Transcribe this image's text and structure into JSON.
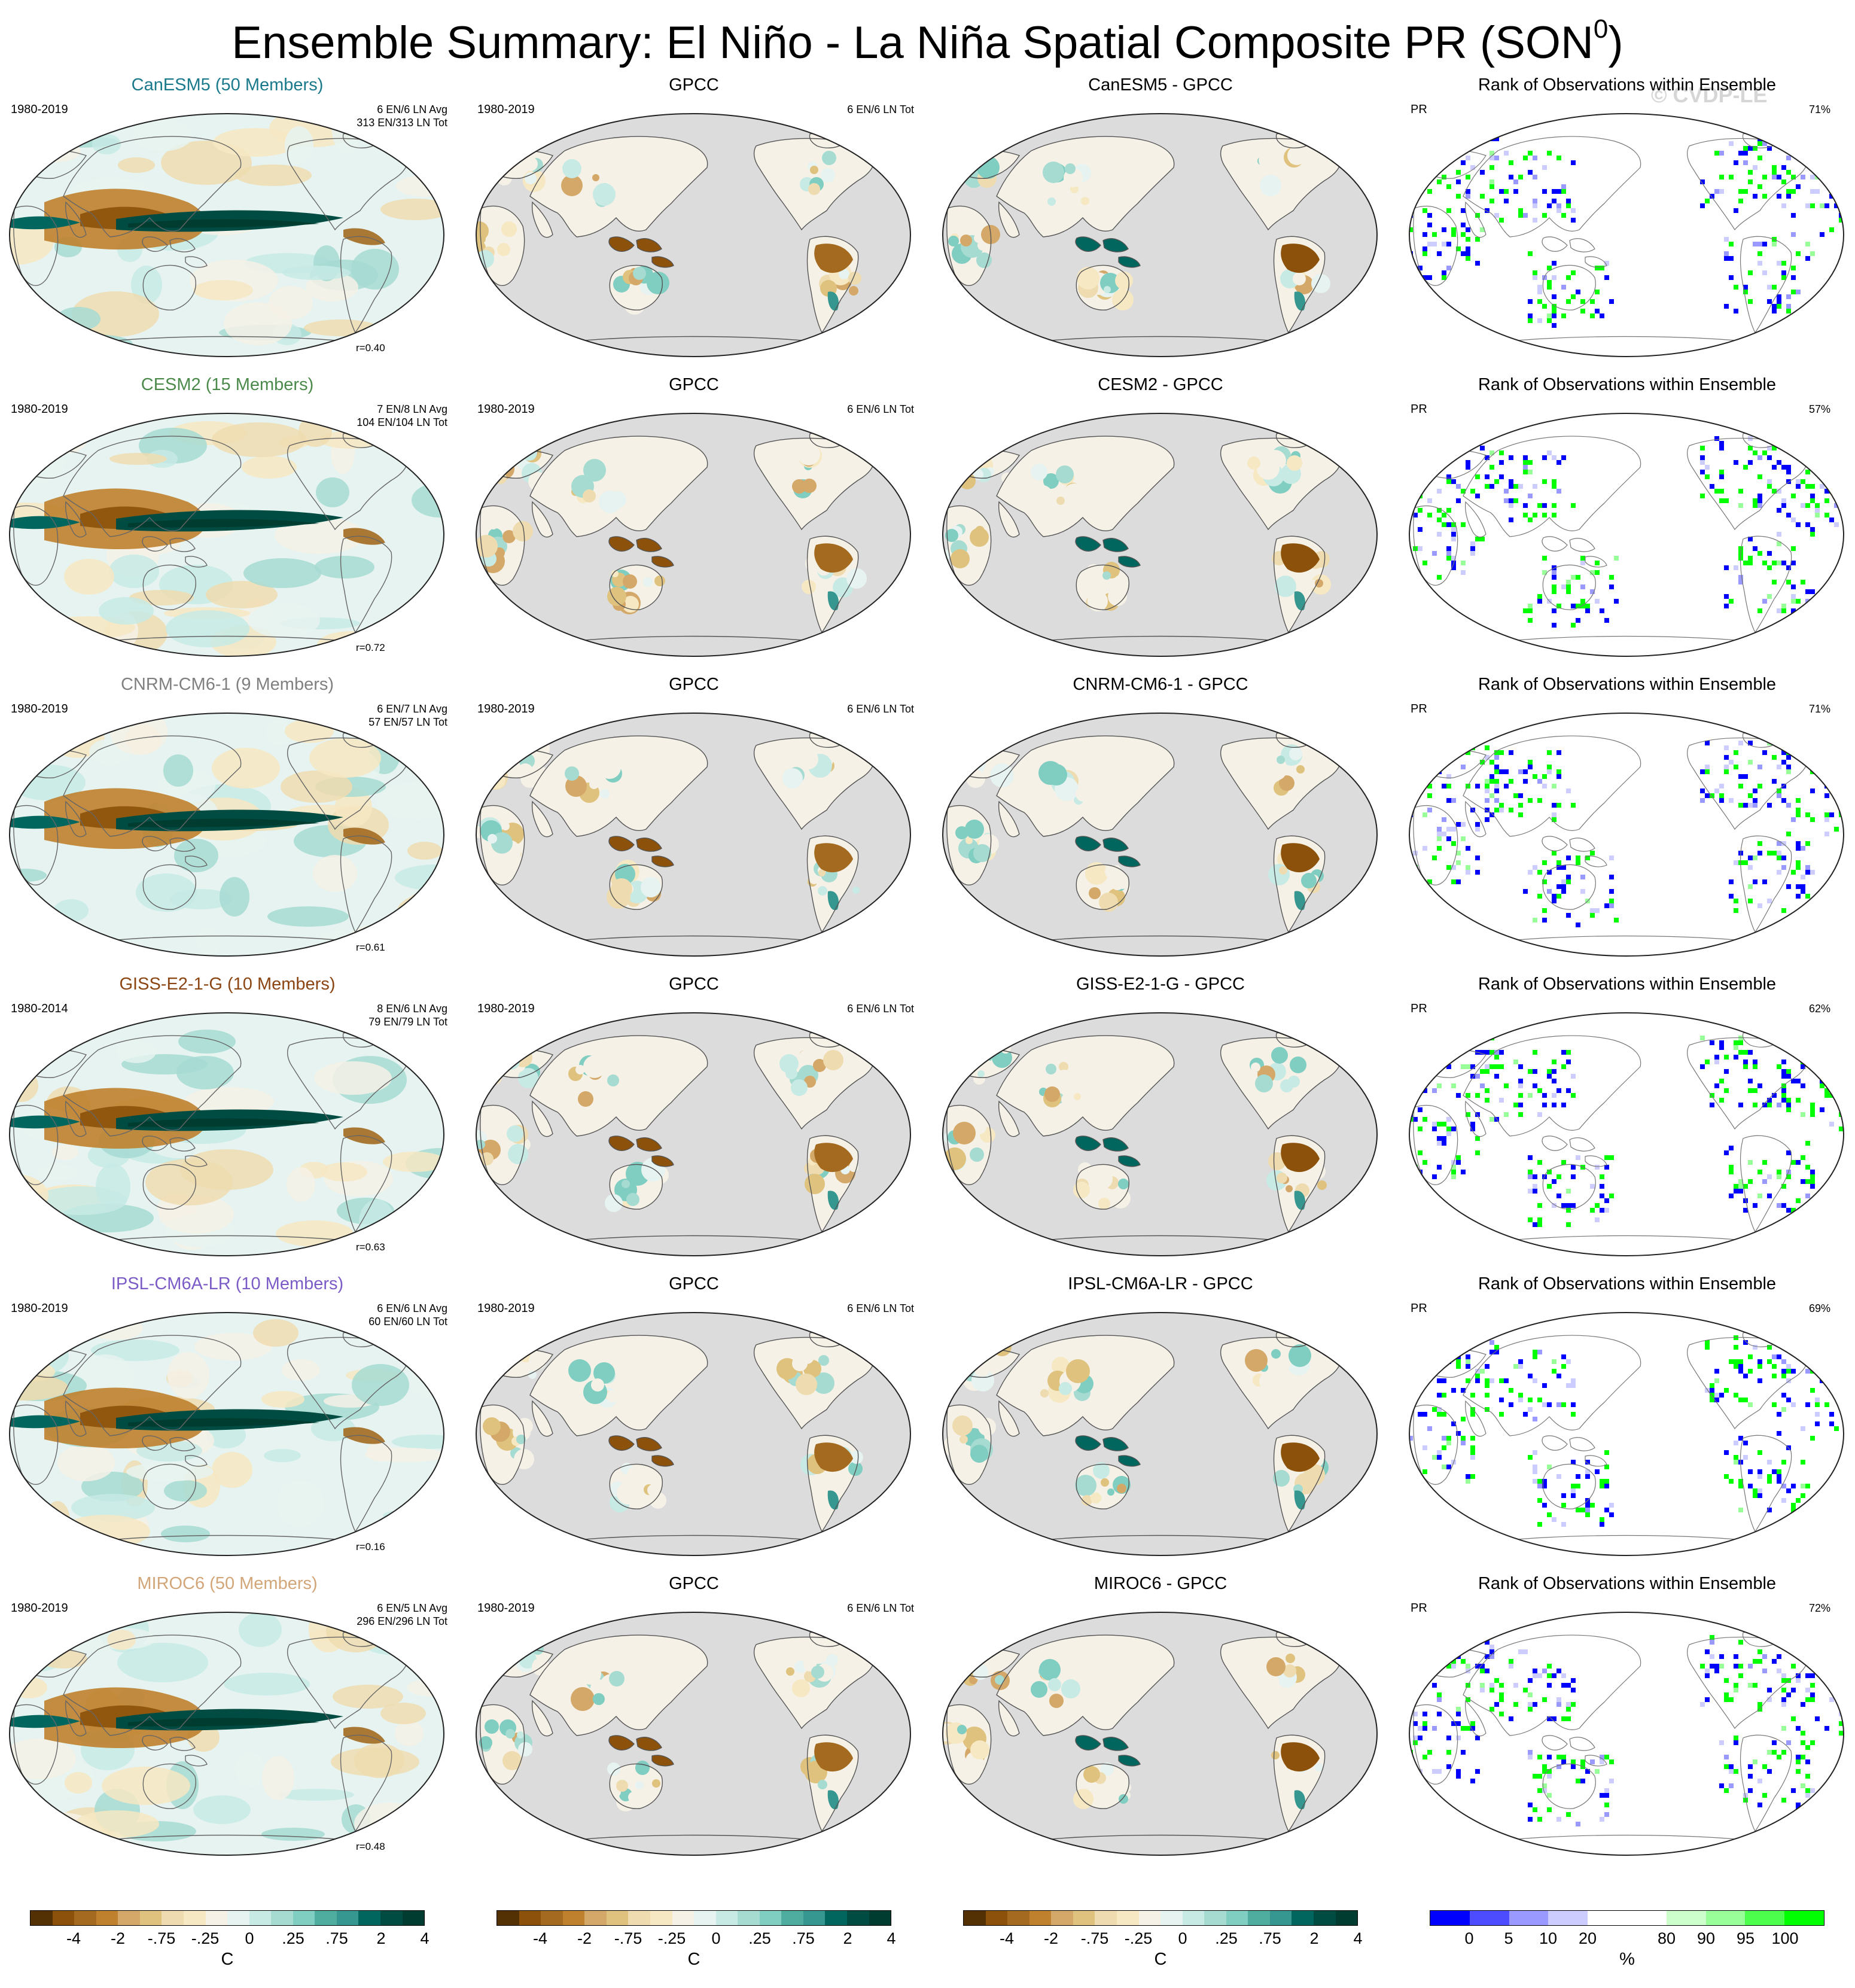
{
  "page": {
    "title": "Ensemble Summary: El Niño - La Niña Spatial Composite PR (SON",
    "title_sup": "0",
    "title_close": ")",
    "watermark": "© CVDP-LE"
  },
  "chart_data": {
    "type": "heatmap",
    "description_rows": [
      {
        "model": "CanESM5",
        "ensemble_title": "CanESM5 (50 Members)",
        "title_color": "#1a7a8c",
        "period": "1980-2019",
        "composite_counts": [
          "6 EN/6 LN Avg",
          "313 EN/313 LN Tot"
        ],
        "pattern_correlation": "r=0.40",
        "obs_title": "GPCC",
        "obs_period": "1980-2019",
        "obs_counts": "6 EN/6 LN Tot",
        "diff_title": "CanESM5 - GPCC",
        "rank_title": "Rank of Observations within Ensemble",
        "rank_var": "PR",
        "rank_pct": "71%"
      },
      {
        "model": "CESM2",
        "ensemble_title": "CESM2 (15 Members)",
        "title_color": "#4c8a4c",
        "period": "1980-2019",
        "composite_counts": [
          "7 EN/8 LN Avg",
          "104 EN/104 LN Tot"
        ],
        "pattern_correlation": "r=0.72",
        "obs_title": "GPCC",
        "obs_period": "1980-2019",
        "obs_counts": "6 EN/6 LN Tot",
        "diff_title": "CESM2 - GPCC",
        "rank_title": "Rank of Observations within Ensemble",
        "rank_var": "PR",
        "rank_pct": "57%"
      },
      {
        "model": "CNRM-CM6-1",
        "ensemble_title": "CNRM-CM6-1 (9 Members)",
        "title_color": "#808080",
        "period": "1980-2019",
        "composite_counts": [
          "6 EN/7 LN Avg",
          "57 EN/57 LN Tot"
        ],
        "pattern_correlation": "r=0.61",
        "obs_title": "GPCC",
        "obs_period": "1980-2019",
        "obs_counts": "6 EN/6 LN Tot",
        "diff_title": "CNRM-CM6-1 - GPCC",
        "rank_title": "Rank of Observations within Ensemble",
        "rank_var": "PR",
        "rank_pct": "71%"
      },
      {
        "model": "GISS-E2-1-G",
        "ensemble_title": "GISS-E2-1-G (10 Members)",
        "title_color": "#8b4513",
        "period": "1980-2014",
        "composite_counts": [
          "8 EN/6 LN Avg",
          "79 EN/79 LN Tot"
        ],
        "pattern_correlation": "r=0.63",
        "obs_title": "GPCC",
        "obs_period": "1980-2019",
        "obs_counts": "6 EN/6 LN Tot",
        "diff_title": "GISS-E2-1-G - GPCC",
        "rank_title": "Rank of Observations within Ensemble",
        "rank_var": "PR",
        "rank_pct": "62%"
      },
      {
        "model": "IPSL-CM6A-LR",
        "ensemble_title": "IPSL-CM6A-LR (10 Members)",
        "title_color": "#7b5cc7",
        "period": "1980-2019",
        "composite_counts": [
          "6 EN/6 LN Avg",
          "60 EN/60 LN Tot"
        ],
        "pattern_correlation": "r=0.16",
        "obs_title": "GPCC",
        "obs_period": "1980-2019",
        "obs_counts": "6 EN/6 LN Tot",
        "diff_title": "IPSL-CM6A-LR - GPCC",
        "rank_title": "Rank of Observations within Ensemble",
        "rank_var": "PR",
        "rank_pct": "69%"
      },
      {
        "model": "MIROC6",
        "ensemble_title": "MIROC6 (50 Members)",
        "title_color": "#d2a679",
        "period": "1980-2019",
        "composite_counts": [
          "6 EN/5 LN Avg",
          "296 EN/296 LN Tot"
        ],
        "pattern_correlation": "r=0.48",
        "obs_title": "GPCC",
        "obs_period": "1980-2019",
        "obs_counts": "6 EN/6 LN Tot",
        "diff_title": "MIROC6 - GPCC",
        "rank_title": "Rank of Observations within Ensemble",
        "rank_var": "PR",
        "rank_pct": "72%"
      }
    ],
    "colorbars": {
      "anomaly": {
        "unit": "C",
        "ticks": [
          "-4",
          "-2",
          "-.75",
          "-.25",
          "0",
          ".25",
          ".75",
          "2",
          "4"
        ],
        "colors": [
          "#543005",
          "#8c510a",
          "#a36a20",
          "#bf812d",
          "#d4a868",
          "#dfc27d",
          "#eedcb0",
          "#f6e8c3",
          "#f5f1e6",
          "#e6f3f0",
          "#c7eae5",
          "#a6dbd2",
          "#80cdc1",
          "#4fad9f",
          "#35978f",
          "#01665e",
          "#004c42",
          "#003c30"
        ]
      },
      "rank": {
        "unit": "%",
        "ticks": [
          "0",
          "5",
          "10",
          "20",
          "80",
          "90",
          "95",
          "100"
        ],
        "colors": [
          "#0000ff",
          "#4d4dff",
          "#9999ff",
          "#ccccff",
          "#ffffff",
          "#ffffff",
          "#ccffcc",
          "#99ff99",
          "#4dff4d",
          "#00ff00"
        ]
      }
    }
  }
}
